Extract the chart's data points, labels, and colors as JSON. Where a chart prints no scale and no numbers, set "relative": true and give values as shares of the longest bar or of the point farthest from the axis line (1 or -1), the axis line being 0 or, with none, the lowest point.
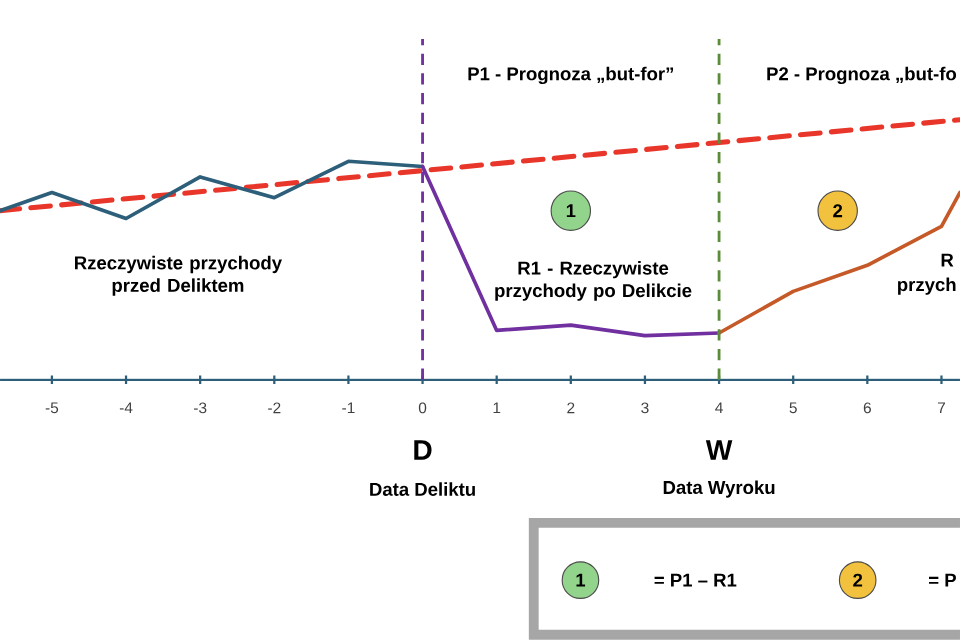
{
  "chart_data": {
    "type": "line",
    "relative": true,
    "xlim": [
      -5.7,
      7.25
    ],
    "xticks": [
      -5,
      -4,
      -3,
      -2,
      -1,
      0,
      1,
      2,
      3,
      4,
      5,
      6,
      7
    ],
    "tick_labels": "x",
    "marker": "none",
    "series": [
      {
        "color": "#e8372a",
        "line_style": "dashed",
        "x": [
          -5.7,
          7.25
        ],
        "values": [
          0.65,
          1.0
        ]
      },
      {
        "color": "#2e5f7a",
        "line_style": "solid",
        "x": [
          -5.7,
          -5,
          -4,
          -3,
          -2,
          -1,
          0
        ],
        "values": [
          0.65,
          0.72,
          0.62,
          0.78,
          0.7,
          0.84,
          0.82
        ]
      },
      {
        "color": "#7030a0",
        "line_style": "solid",
        "x": [
          0,
          1,
          2,
          3,
          4
        ],
        "values": [
          0.82,
          0.19,
          0.21,
          0.17,
          0.18
        ]
      },
      {
        "color": "#c55a28",
        "line_style": "solid",
        "x": [
          4,
          5,
          6,
          7,
          7.25
        ],
        "values": [
          0.18,
          0.34,
          0.44,
          0.59,
          0.72
        ]
      }
    ],
    "ref_lines": [
      {
        "axis": "x",
        "value": 0,
        "label": "D",
        "color": "#7030a0",
        "line_style": "dashed"
      },
      {
        "axis": "x",
        "value": 4,
        "label": "W",
        "color": "#5b8c3a",
        "line_style": "dashed"
      }
    ],
    "annotations": [
      "P1 - Prognoza „but-for”",
      "P2 - Prognoza „but-fo",
      "1",
      "2",
      "Rzeczywiste przychody przed Deliktem",
      "R1 - Rzeczywiste przychody po Delikcie",
      "R",
      "przych",
      "Data Deliktu",
      "Data Wyroku",
      "1",
      "= P1 – R1",
      "2",
      "= P"
    ]
  }
}
